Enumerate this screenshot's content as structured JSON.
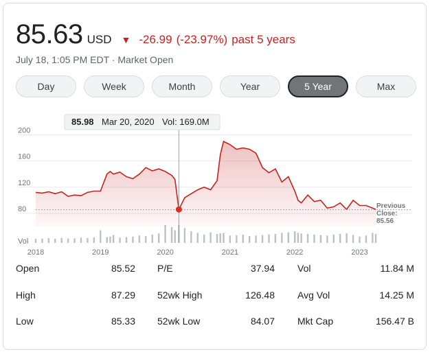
{
  "quote": {
    "price": "85.63",
    "currency": "USD",
    "change_arrow": "▼",
    "change_abs": "-26.99",
    "change_pct": "(-23.97%)",
    "change_period": "past 5 years",
    "timestamp": "July 18, 1:05 PM EDT",
    "market_status": "Market Open",
    "separator": "·"
  },
  "colors": {
    "down": "#c5221f",
    "line": "#c5221f",
    "volume": "#bdc1c6",
    "active_tab": "#70757a"
  },
  "tabs": [
    {
      "label": "Day",
      "active": false
    },
    {
      "label": "Week",
      "active": false
    },
    {
      "label": "Month",
      "active": false
    },
    {
      "label": "Year",
      "active": false
    },
    {
      "label": "5 Year",
      "active": true
    },
    {
      "label": "Max",
      "active": false
    }
  ],
  "tooltip": {
    "price": "85.98",
    "date": "Mar 20, 2020",
    "vol": "Vol: 169.0M"
  },
  "previous_close": {
    "label1": "Previous",
    "label2": "Close:",
    "value": "85.56"
  },
  "chart_data": {
    "type": "area",
    "x_labels": [
      "2018",
      "2019",
      "2020",
      "2021",
      "2022",
      "2023"
    ],
    "y_ticks": [
      200,
      160,
      120,
      80
    ],
    "ylim": [
      60,
      210
    ],
    "volume_label": "Vol",
    "previous_close": 85.56,
    "hover_point": {
      "x": 2020.21,
      "y": 85.98
    },
    "series": [
      {
        "x": [
          2018.0,
          2018.1,
          2018.2,
          2018.3,
          2018.4,
          2018.5,
          2018.6,
          2018.7,
          2018.8,
          2018.9,
          2019.0,
          2019.1,
          2019.15,
          2019.2,
          2019.3,
          2019.4,
          2019.5,
          2019.6,
          2019.7,
          2019.8,
          2019.9,
          2020.0,
          2020.1,
          2020.15,
          2020.21,
          2020.3,
          2020.4,
          2020.5,
          2020.6,
          2020.7,
          2020.8,
          2020.85,
          2020.9,
          2021.0,
          2021.1,
          2021.2,
          2021.3,
          2021.4,
          2021.5,
          2021.6,
          2021.7,
          2021.8,
          2021.9,
          2022.0,
          2022.05,
          2022.1,
          2022.2,
          2022.3,
          2022.4,
          2022.5,
          2022.6,
          2022.7,
          2022.8,
          2022.9,
          2023.0,
          2023.1,
          2023.2,
          2023.25
        ],
        "y": [
          112,
          111,
          113,
          110,
          113,
          106,
          108,
          107,
          112,
          114,
          114,
          140,
          144,
          140,
          143,
          136,
          133,
          140,
          150,
          145,
          148,
          144,
          138,
          132,
          86,
          104,
          110,
          116,
          120,
          116,
          130,
          170,
          190,
          185,
          178,
          180,
          178,
          172,
          150,
          142,
          148,
          128,
          136,
          114,
          100,
          96,
          108,
          98,
          100,
          88,
          90,
          96,
          86,
          100,
          92,
          92,
          88,
          86
        ],
        "volume": [
          40,
          42,
          45,
          40,
          48,
          42,
          44,
          50,
          45,
          52,
          120,
          55,
          60,
          75,
          50,
          55,
          60,
          70,
          65,
          80,
          90,
          169,
          150,
          120,
          169,
          140,
          110,
          95,
          80,
          100,
          85,
          90,
          95,
          70,
          72,
          78,
          65,
          70,
          75,
          80,
          85,
          95,
          100,
          110,
          95,
          90,
          85,
          80,
          75,
          70,
          80,
          85,
          90,
          75,
          60,
          70,
          95,
          85
        ]
      }
    ]
  },
  "stats": [
    [
      {
        "label": "Open",
        "value": "85.52"
      },
      {
        "label": "P/E",
        "value": "37.94"
      },
      {
        "label": "Vol",
        "value": "11.84 M"
      }
    ],
    [
      {
        "label": "High",
        "value": "87.29"
      },
      {
        "label": "52wk High",
        "value": "126.48"
      },
      {
        "label": "Avg Vol",
        "value": "14.25 M"
      }
    ],
    [
      {
        "label": "Low",
        "value": "85.33"
      },
      {
        "label": "52wk Low",
        "value": "84.07"
      },
      {
        "label": "Mkt Cap",
        "value": "156.47 B"
      }
    ]
  ]
}
